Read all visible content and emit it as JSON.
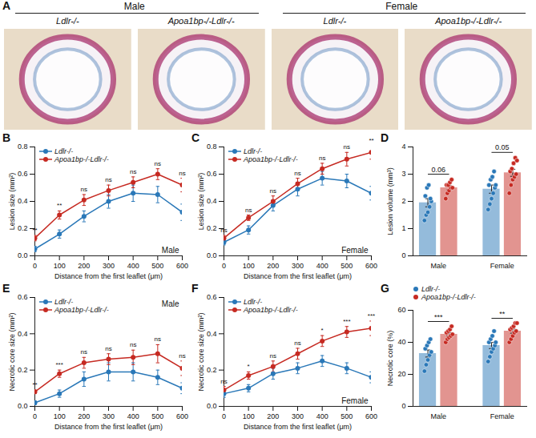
{
  "panel_a": {
    "label": "A",
    "groups": [
      {
        "title": "Male",
        "columns": [
          "Ldlr-/-",
          "Apoa1bp-/-Ldlr-/-"
        ]
      },
      {
        "title": "Female",
        "columns": [
          "Ldlr-/-",
          "Apoa1bp-/-Ldlr-/-"
        ]
      }
    ]
  },
  "chart_data": [
    {
      "panel": "B",
      "type": "line",
      "annotation": "Male",
      "x_label": "Distance from the first leaflet (μm)",
      "y_label": "Lesion size (mm²)",
      "x": [
        0,
        100,
        200,
        300,
        400,
        500,
        600
      ],
      "xlim": [
        0,
        600
      ],
      "xticks": [
        0,
        100,
        200,
        300,
        400,
        500,
        600
      ],
      "ylim": [
        0,
        0.8
      ],
      "yticks": [
        {
          "value": 0,
          "label": "0.0"
        },
        {
          "value": 0.2,
          "label": "0.2"
        },
        {
          "value": 0.4,
          "label": "0.4"
        },
        {
          "value": 0.6,
          "label": "0.6"
        },
        {
          "value": 0.8,
          "label": "0.8"
        }
      ],
      "grid": false,
      "legend": "top-left",
      "series": [
        {
          "name": "Ldlr-/-",
          "color": "#2a78b8",
          "marker": "circle",
          "values": [
            0.05,
            0.16,
            0.29,
            0.4,
            0.46,
            0.45,
            0.32
          ],
          "errors": [
            0.02,
            0.03,
            0.04,
            0.05,
            0.06,
            0.06,
            0.06
          ]
        },
        {
          "name": "Apoa1bp-/-Ldlr-/-",
          "color": "#c62a22",
          "marker": "circle",
          "values": [
            0.13,
            0.3,
            0.41,
            0.48,
            0.54,
            0.6,
            0.52
          ],
          "errors": [
            0.02,
            0.03,
            0.04,
            0.04,
            0.04,
            0.04,
            0.05
          ]
        }
      ],
      "significance": [
        "**",
        "**",
        "ns",
        "ns",
        "ns",
        "ns",
        "ns"
      ]
    },
    {
      "panel": "C",
      "type": "line",
      "annotation": "Female",
      "x_label": "Distance from the first leaflet (μm)",
      "y_label": "Lesion size (mm²)",
      "x": [
        0,
        100,
        200,
        300,
        400,
        500,
        600
      ],
      "xlim": [
        0,
        600
      ],
      "xticks": [
        0,
        100,
        200,
        300,
        400,
        500,
        600
      ],
      "ylim": [
        0,
        0.8
      ],
      "yticks": [
        {
          "value": 0,
          "label": "0.0"
        },
        {
          "value": 0.2,
          "label": "0.2"
        },
        {
          "value": 0.4,
          "label": "0.4"
        },
        {
          "value": 0.6,
          "label": "0.6"
        },
        {
          "value": 0.8,
          "label": "0.8"
        }
      ],
      "grid": false,
      "legend": "top-left",
      "series": [
        {
          "name": "Ldlr-/-",
          "color": "#2a78b8",
          "marker": "circle",
          "values": [
            0.1,
            0.19,
            0.37,
            0.49,
            0.57,
            0.55,
            0.46
          ],
          "errors": [
            0.02,
            0.03,
            0.04,
            0.05,
            0.05,
            0.05,
            0.05
          ]
        },
        {
          "name": "Apoa1bp-/-Ldlr-/-",
          "color": "#c62a22",
          "marker": "circle",
          "values": [
            0.13,
            0.28,
            0.4,
            0.53,
            0.64,
            0.71,
            0.76
          ],
          "errors": [
            0.02,
            0.02,
            0.04,
            0.04,
            0.04,
            0.05,
            0.05
          ]
        }
      ],
      "significance": [
        "ns",
        "ns",
        "ns",
        "ns",
        "ns",
        "ns",
        "**"
      ]
    },
    {
      "panel": "D",
      "type": "bar",
      "y_label": "Lesion volume (mm³)",
      "categories": [
        "Male",
        "Female"
      ],
      "ylim": [
        0,
        4
      ],
      "yticks": [
        0,
        1,
        2,
        3,
        4
      ],
      "grid": false,
      "series": [
        {
          "name": "Ldlr-/-",
          "color": "#2a78b8",
          "values": [
            1.95,
            2.45
          ],
          "errors": [
            0.15,
            0.15
          ],
          "points": [
            [
              1.3,
              1.5,
              1.6,
              1.8,
              2.0,
              2.2,
              2.5,
              2.6,
              2.1
            ],
            [
              1.7,
              1.9,
              2.1,
              2.3,
              2.5,
              2.6,
              2.8,
              2.9,
              3.1,
              2.6
            ]
          ]
        },
        {
          "name": "Apoa1bp-/-Ldlr-/-",
          "color": "#c62a22",
          "values": [
            2.5,
            3.05
          ],
          "errors": [
            0.08,
            0.13
          ],
          "points": [
            [
              2.1,
              2.3,
              2.4,
              2.5,
              2.5,
              2.6,
              2.6,
              2.7,
              2.8
            ],
            [
              2.3,
              2.6,
              2.8,
              2.9,
              3.0,
              3.1,
              3.2,
              3.4,
              3.6,
              3.5
            ]
          ]
        }
      ],
      "significance": [
        "0.06",
        "0.05"
      ]
    },
    {
      "panel": "E",
      "type": "line",
      "annotation": "Male",
      "x_label": "Distance from the first leaflet (μm)",
      "y_label": "Necrotic core size (mm²)",
      "x": [
        0,
        100,
        200,
        300,
        400,
        500,
        600
      ],
      "xlim": [
        0,
        600
      ],
      "xticks": [
        0,
        100,
        200,
        300,
        400,
        500,
        600
      ],
      "ylim": [
        0,
        0.6
      ],
      "yticks": [
        {
          "value": 0,
          "label": "0.0"
        },
        {
          "value": 0.2,
          "label": "0.2"
        },
        {
          "value": 0.4,
          "label": "0.4"
        },
        {
          "value": 0.6,
          "label": "0.6"
        }
      ],
      "grid": false,
      "legend": "top-left",
      "series": [
        {
          "name": "Ldlr-/-",
          "color": "#2a78b8",
          "marker": "circle",
          "values": [
            0.02,
            0.07,
            0.15,
            0.19,
            0.19,
            0.16,
            0.1
          ],
          "errors": [
            0.01,
            0.02,
            0.04,
            0.05,
            0.05,
            0.04,
            0.03
          ]
        },
        {
          "name": "Apoa1bp-/-Ldlr-/-",
          "color": "#c62a22",
          "marker": "circle",
          "values": [
            0.08,
            0.18,
            0.24,
            0.26,
            0.27,
            0.29,
            0.21
          ],
          "errors": [
            0.01,
            0.02,
            0.03,
            0.03,
            0.04,
            0.05,
            0.04
          ]
        }
      ],
      "significance": [
        "**",
        "***",
        "ns",
        "ns",
        "ns",
        "ns",
        "ns"
      ]
    },
    {
      "panel": "F",
      "type": "line",
      "annotation": "Female",
      "x_label": "Distance from the first leaflet (μm)",
      "y_label": "Necrotic core size (mm²)",
      "x": [
        0,
        100,
        200,
        300,
        400,
        500,
        600
      ],
      "xlim": [
        0,
        600
      ],
      "xticks": [
        0,
        100,
        200,
        300,
        400,
        500,
        600
      ],
      "ylim": [
        0,
        0.6
      ],
      "yticks": [
        {
          "value": 0,
          "label": "0.0"
        },
        {
          "value": 0.2,
          "label": "0.2"
        },
        {
          "value": 0.4,
          "label": "0.4"
        },
        {
          "value": 0.6,
          "label": "0.6"
        }
      ],
      "grid": false,
      "legend": "top-left",
      "series": [
        {
          "name": "Ldlr-/-",
          "color": "#2a78b8",
          "marker": "circle",
          "values": [
            0.07,
            0.1,
            0.18,
            0.21,
            0.25,
            0.21,
            0.16
          ],
          "errors": [
            0.02,
            0.02,
            0.03,
            0.03,
            0.03,
            0.03,
            0.03
          ]
        },
        {
          "name": "Apoa1bp-/-Ldlr-/-",
          "color": "#c62a22",
          "marker": "circle",
          "values": [
            0.09,
            0.17,
            0.22,
            0.29,
            0.36,
            0.41,
            0.43
          ],
          "errors": [
            0.02,
            0.02,
            0.03,
            0.03,
            0.03,
            0.03,
            0.04
          ]
        }
      ],
      "significance": [
        "ns",
        "*",
        "ns",
        "ns",
        "*",
        "***",
        "***"
      ]
    },
    {
      "panel": "G",
      "type": "bar",
      "y_label": "Necrotic core (%)",
      "categories": [
        "Male",
        "Female"
      ],
      "ylim": [
        0,
        60
      ],
      "yticks": [
        0,
        20,
        40,
        60
      ],
      "grid": false,
      "legend": "top",
      "series": [
        {
          "name": "Ldlr-/-",
          "color": "#2a78b8",
          "values": [
            33,
            38
          ],
          "errors": [
            2.2,
            1.9
          ],
          "points": [
            [
              22,
              26,
              29,
              32,
              34,
              36,
              38,
              40,
              42
            ],
            [
              28,
              31,
              34,
              36,
              38,
              40,
              42,
              44,
              47,
              40
            ]
          ]
        },
        {
          "name": "Apoa1bp-/-Ldlr-/-",
          "color": "#c62a22",
          "values": [
            45,
            47
          ],
          "errors": [
            1.0,
            1.3
          ],
          "points": [
            [
              40,
              42,
              43,
              44,
              45,
              46,
              47,
              48,
              50
            ],
            [
              40,
              42,
              44,
              46,
              47,
              48,
              49,
              50,
              52,
              52
            ]
          ]
        }
      ],
      "significance": [
        "***",
        "**"
      ]
    }
  ]
}
